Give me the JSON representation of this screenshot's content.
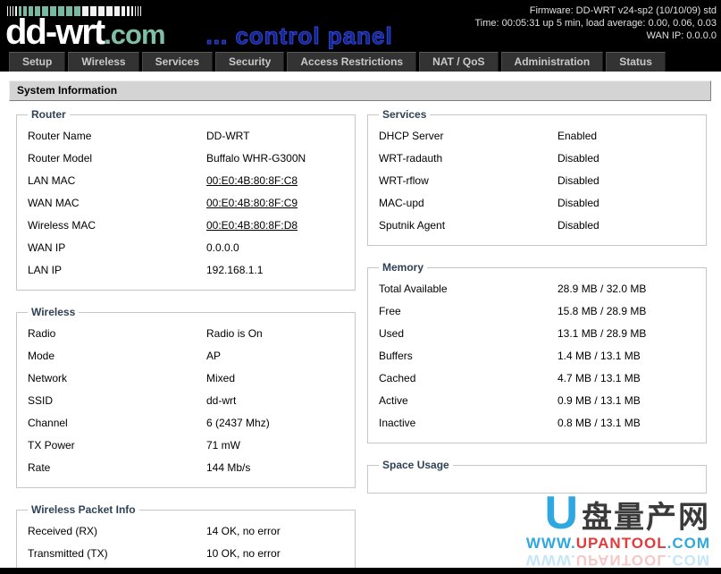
{
  "header": {
    "logo_main": "dd-wrt",
    "logo_suffix": ".com",
    "tagline": "... control panel",
    "info_lines": {
      "firmware": "Firmware: DD-WRT v24-sp2 (10/10/09) std",
      "time": "Time: 00:05:31 up 5 min, load average: 0.00, 0.06, 0.03",
      "wan": "WAN IP: 0.0.0.0"
    }
  },
  "tabs": {
    "setup": "Setup",
    "wireless": "Wireless",
    "services": "Services",
    "security": "Security",
    "access": "Access Restrictions",
    "nat": "NAT / QoS",
    "admin": "Administration",
    "status": "Status"
  },
  "page_title": "System Information",
  "router": {
    "title": "Router",
    "rows": [
      {
        "label": "Router Name",
        "value": "DD-WRT"
      },
      {
        "label": "Router Model",
        "value": "Buffalo WHR-G300N"
      },
      {
        "label": "LAN MAC",
        "value": "00:E0:4B:80:8F:C8"
      },
      {
        "label": "WAN MAC",
        "value": "00:E0:4B:80:8F:C9"
      },
      {
        "label": "Wireless MAC",
        "value": "00:E0:4B:80:8F:D8"
      },
      {
        "label": "WAN IP",
        "value": "0.0.0.0"
      },
      {
        "label": "LAN IP",
        "value": "192.168.1.1"
      }
    ]
  },
  "wireless": {
    "title": "Wireless",
    "rows": [
      {
        "label": "Radio",
        "value": "Radio is On"
      },
      {
        "label": "Mode",
        "value": "AP"
      },
      {
        "label": "Network",
        "value": "Mixed"
      },
      {
        "label": "SSID",
        "value": "dd-wrt"
      },
      {
        "label": "Channel",
        "value": "6 (2437 Mhz)"
      },
      {
        "label": "TX Power",
        "value": "71 mW"
      },
      {
        "label": "Rate",
        "value": "144 Mb/s"
      }
    ]
  },
  "packet_info": {
    "title": "Wireless Packet Info",
    "rows": [
      {
        "label": "Received (RX)",
        "value": "14 OK, no error"
      },
      {
        "label": "Transmitted (TX)",
        "value": "10 OK, no error"
      }
    ]
  },
  "services": {
    "title": "Services",
    "rows": [
      {
        "label": "DHCP Server",
        "value": "Enabled"
      },
      {
        "label": "WRT-radauth",
        "value": "Disabled"
      },
      {
        "label": "WRT-rflow",
        "value": "Disabled"
      },
      {
        "label": "MAC-upd",
        "value": "Disabled"
      },
      {
        "label": "Sputnik Agent",
        "value": "Disabled"
      }
    ]
  },
  "memory": {
    "title": "Memory",
    "rows": [
      {
        "label": "Total Available",
        "value": "28.9 MB / 32.0 MB"
      },
      {
        "label": "Free",
        "value": "15.8 MB / 28.9 MB"
      },
      {
        "label": "Used",
        "value": "13.1 MB / 28.9 MB"
      },
      {
        "label": "Buffers",
        "value": "1.4 MB / 13.1 MB"
      },
      {
        "label": "Cached",
        "value": "4.7 MB / 13.1 MB"
      },
      {
        "label": "Active",
        "value": "0.9 MB / 13.1 MB"
      },
      {
        "label": "Inactive",
        "value": "0.8 MB / 13.1 MB"
      }
    ]
  },
  "space_usage": {
    "title": "Space Usage"
  },
  "watermark": {
    "u": "U",
    "cn": "盘量产网",
    "url_www": "WWW.",
    "url_name": "UPANTOOL",
    "url_com": ".COM"
  },
  "colors": {
    "accent_teal": "#7fbfa7",
    "tagline_blue": "#2f46e0",
    "legend_navy": "#2f4255",
    "watermark_blue": "#2fa8e1",
    "watermark_red": "#e23b3b"
  }
}
